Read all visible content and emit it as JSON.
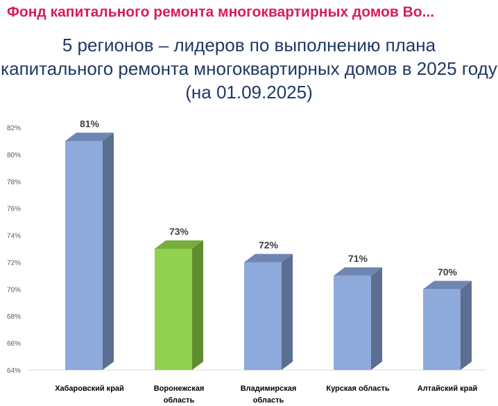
{
  "header": {
    "app_title": "Фонд капитального ремонта многоквартирных домов Во..."
  },
  "chart_data": {
    "type": "bar",
    "title_lines": [
      "5 регионов – лидеров по выполнению плана",
      "капитального ремонта многоквартирных домов в 2025 году",
      "(на 01.09.2025)"
    ],
    "categories": [
      "Хабаровский край",
      "Воронежская область",
      "Владимирская область",
      "Курская область",
      "Алтайский край"
    ],
    "category_lines": [
      [
        "Хабаровский край"
      ],
      [
        "Воронежская",
        "область"
      ],
      [
        "Владимирская",
        "область"
      ],
      [
        "Курская область"
      ],
      [
        "Алтайский край"
      ]
    ],
    "values": [
      81,
      73,
      72,
      71,
      70
    ],
    "data_labels": [
      "81%",
      "73%",
      "72%",
      "71%",
      "70%"
    ],
    "ylim": [
      64,
      82
    ],
    "yticks": [
      64,
      66,
      68,
      70,
      72,
      74,
      76,
      78,
      80,
      82
    ],
    "ytick_labels": [
      "64%",
      "66%",
      "68%",
      "70%",
      "72%",
      "74%",
      "76%",
      "78%",
      "80%",
      "82%"
    ],
    "grid": false,
    "legend": "none",
    "bar_3d": true,
    "colors": {
      "default_front": "#8eaadb",
      "default_side": "#5b6f93",
      "default_top": "#6f86b3",
      "highlight_front": "#92d050",
      "highlight_side": "#5e8c2e",
      "highlight_top": "#76ad3c",
      "axis": "#d9d9d9"
    },
    "highlight_index": 1
  }
}
